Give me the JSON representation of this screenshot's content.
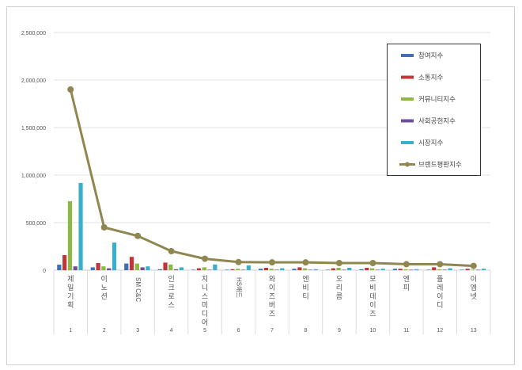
{
  "chart_data": {
    "type": "bar",
    "title": "",
    "xlabel": "",
    "ylabel": "",
    "ylim": [
      0,
      2500000
    ],
    "yticks": [
      "0",
      "500,000",
      "1,000,000",
      "1,500,000",
      "2,000,000",
      "2,500,000"
    ],
    "grid": true,
    "legend_position": "top-right",
    "categories": [
      "제일기획",
      "이노션",
      "SM C&C",
      "인크로스",
      "지니스미디어",
      "HS애드",
      "와이즈버즈",
      "엔비티",
      "오리콤",
      "모비데이즈",
      "엔피",
      "플레이디",
      "이엠넷"
    ],
    "ranks": [
      "1",
      "2",
      "3",
      "4",
      "5",
      "6",
      "7",
      "8",
      "9",
      "10",
      "11",
      "12",
      "13"
    ],
    "series": [
      {
        "name": "참여지수",
        "kind": "bar",
        "color": "#3e6fb5",
        "values": [
          58000,
          30000,
          70000,
          10000,
          5000,
          5000,
          15000,
          15000,
          5000,
          10000,
          15000,
          5000,
          5000
        ]
      },
      {
        "name": "소통지수",
        "kind": "bar",
        "color": "#c0373a",
        "values": [
          158000,
          75000,
          140000,
          80000,
          20000,
          10000,
          25000,
          30000,
          20000,
          25000,
          15000,
          30000,
          15000
        ]
      },
      {
        "name": "커뮤니티지수",
        "kind": "bar",
        "color": "#8cb843",
        "values": [
          725000,
          40000,
          70000,
          60000,
          30000,
          15000,
          15000,
          20000,
          25000,
          20000,
          10000,
          10000,
          5000
        ]
      },
      {
        "name": "사회공헌지수",
        "kind": "bar",
        "color": "#6e4f9a",
        "values": [
          40000,
          20000,
          30000,
          10000,
          5000,
          5000,
          5000,
          5000,
          5000,
          5000,
          5000,
          5000,
          5000
        ]
      },
      {
        "name": "시장지수",
        "kind": "bar",
        "color": "#3aaecb",
        "values": [
          917000,
          290000,
          40000,
          30000,
          60000,
          50000,
          20000,
          10000,
          25000,
          15000,
          10000,
          20000,
          15000
        ]
      },
      {
        "name": "브랜드평판지수",
        "kind": "line",
        "color": "#8f8650",
        "values": [
          1900000,
          450000,
          360000,
          200000,
          120000,
          85000,
          82000,
          82000,
          75000,
          75000,
          63000,
          63000,
          45000
        ]
      }
    ]
  }
}
